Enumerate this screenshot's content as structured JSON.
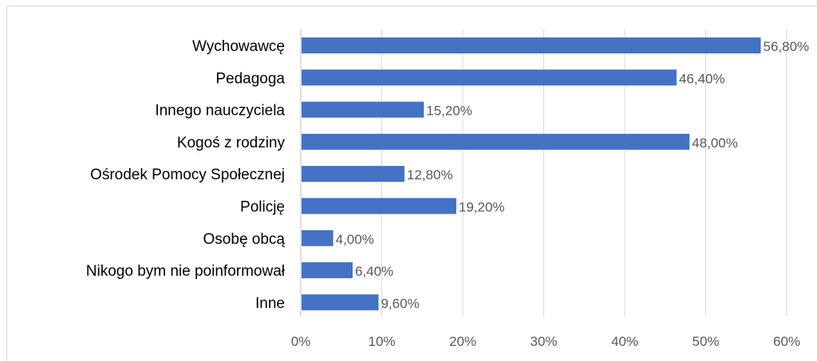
{
  "chart_data": {
    "type": "bar",
    "orientation": "horizontal",
    "title": "",
    "xlabel": "",
    "ylabel": "",
    "categories": [
      "Wychowawcę",
      "Pedagoga",
      "Innego nauczyciela",
      "Kogoś z rodziny",
      "Ośrodek Pomocy Społecznej",
      "Policję",
      "Osobę obcą",
      "Nikogo bym nie poinformował",
      "Inne"
    ],
    "values": [
      56.8,
      46.4,
      15.2,
      48.0,
      12.8,
      19.2,
      4.0,
      6.4,
      9.6
    ],
    "value_labels": [
      "56,80%",
      "46,40%",
      "15,20%",
      "48,00%",
      "12,80%",
      "19,20%",
      "4,00%",
      "6,40%",
      "9,60%"
    ],
    "xlim": [
      0,
      60
    ],
    "x_ticks": [
      0,
      10,
      20,
      30,
      40,
      50,
      60
    ],
    "x_tick_labels": [
      "0%",
      "10%",
      "20%",
      "30%",
      "40%",
      "50%",
      "60%"
    ],
    "grid": true,
    "legend": "none",
    "colors": {
      "bar": "#4472c4",
      "grid": "#d9d9d9",
      "axis": "#bfbfbf",
      "label": "#000000",
      "value_label": "#595959"
    }
  }
}
